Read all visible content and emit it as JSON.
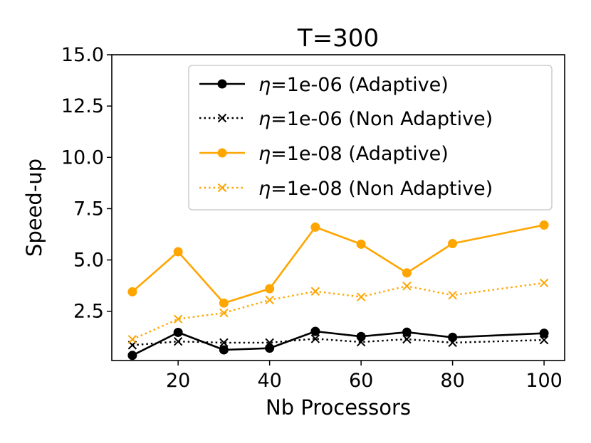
{
  "chart_data": {
    "type": "line",
    "title": "T=300",
    "xlabel": "Nb Processors",
    "ylabel": "Speed-up",
    "xlim": [
      5.5,
      104.5
    ],
    "ylim": [
      0.1,
      15.0
    ],
    "xticks": [
      20,
      40,
      60,
      80,
      100
    ],
    "xtick_labels": [
      "20",
      "40",
      "60",
      "80",
      "100"
    ],
    "yticks": [
      2.5,
      5.0,
      7.5,
      10.0,
      12.5,
      15.0
    ],
    "ytick_labels": [
      "2.5",
      "5.0",
      "7.5",
      "10.0",
      "12.5",
      "15.0"
    ],
    "grid": false,
    "legend_position": "top-right",
    "x": [
      10,
      20,
      30,
      40,
      50,
      60,
      70,
      80,
      100
    ],
    "series": [
      {
        "name": "η=1e-06 (Adaptive)",
        "eta": "η",
        "label_rest": "=1e-06 (Adaptive)",
        "color": "#000000",
        "style": "solid",
        "marker": "circle",
        "values": [
          0.35,
          1.47,
          0.62,
          0.7,
          1.52,
          1.27,
          1.48,
          1.23,
          1.43
        ]
      },
      {
        "name": "η=1e-06 (Non Adaptive)",
        "eta": "η",
        "label_rest": "=1e-06 (Non Adaptive)",
        "color": "#000000",
        "style": "dotted",
        "marker": "x",
        "values": [
          0.85,
          1.03,
          0.97,
          0.97,
          1.16,
          1.0,
          1.14,
          0.97,
          1.1
        ]
      },
      {
        "name": "η=1e-08 (Adaptive)",
        "eta": "η",
        "label_rest": "=1e-08 (Adaptive)",
        "color": "#FFA500",
        "style": "solid",
        "marker": "circle",
        "values": [
          3.45,
          5.4,
          2.9,
          3.6,
          6.6,
          5.77,
          4.37,
          5.8,
          6.7
        ]
      },
      {
        "name": "η=1e-08 (Non Adaptive)",
        "eta": "η",
        "label_rest": "=1e-08 (Non Adaptive)",
        "color": "#FFA500",
        "style": "dotted",
        "marker": "x",
        "values": [
          1.13,
          2.12,
          2.42,
          3.05,
          3.47,
          3.2,
          3.73,
          3.28,
          3.88
        ]
      }
    ]
  }
}
